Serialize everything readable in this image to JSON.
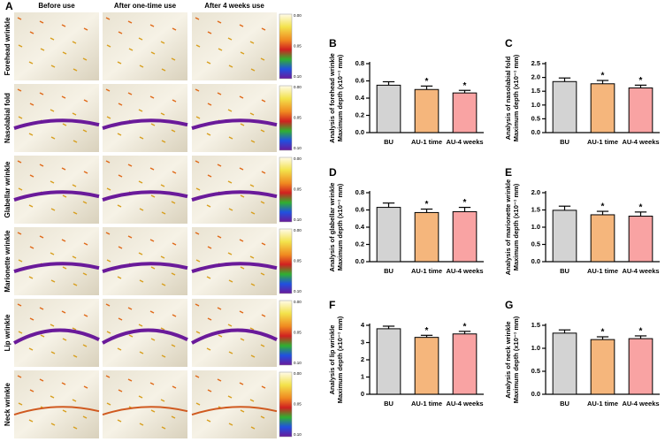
{
  "panel_a": {
    "label": "A",
    "columns": [
      "Before use",
      "After one-time use",
      "After 4 weeks use"
    ],
    "rows": [
      "Forehead wrinkle",
      "Nasolabial  fold",
      "Glabellar wrinkle",
      "Marionette wrinkle",
      "Lip wrinkle",
      "Neck wrinkle"
    ],
    "colorbar_labels": [
      "0.00",
      "0.05",
      "0.10"
    ]
  },
  "chart_data": [
    {
      "type": "bar",
      "label": "B",
      "ylabel": [
        "Analysis of forehead wrinkle",
        "Maximum depth (x10⁻¹ mm)"
      ],
      "categories": [
        "BU",
        "AU-1 time",
        "AU-4 weeks"
      ],
      "colors": [
        "#d3d3d3",
        "#f5b67c",
        "#f9a3a3"
      ],
      "values": [
        0.55,
        0.5,
        0.46
      ],
      "errors": [
        0.04,
        0.04,
        0.03
      ],
      "annotations": [
        null,
        "*",
        "*"
      ],
      "ylim": [
        0,
        0.8
      ],
      "yticks": [
        {
          "value": 0,
          "label": "0.0"
        },
        0.2,
        0.4,
        0.6,
        0.8
      ]
    },
    {
      "type": "bar",
      "label": "C",
      "ylabel": [
        "Analysis of nasolabial fold",
        "Maximum depth (x10⁻¹ mm)"
      ],
      "categories": [
        "BU",
        "AU-1 time",
        "AU-4 weeks"
      ],
      "colors": [
        "#d3d3d3",
        "#f5b67c",
        "#f9a3a3"
      ],
      "values": [
        1.85,
        1.77,
        1.62
      ],
      "errors": [
        0.13,
        0.12,
        0.1
      ],
      "annotations": [
        null,
        "*",
        "*"
      ],
      "ylim": [
        0,
        2.5
      ],
      "yticks": [
        {
          "value": 0,
          "label": "0.0"
        },
        0.5,
        {
          "value": 1,
          "label": "1.0"
        },
        1.5,
        {
          "value": 2,
          "label": "2.0"
        },
        2.5
      ]
    },
    {
      "type": "bar",
      "label": "D",
      "ylabel": [
        "Analysis of glabellar wrinkle",
        "Maximum depth (x10⁻¹ mm)"
      ],
      "categories": [
        "BU",
        "AU-1 time",
        "AU-4 weeks"
      ],
      "colors": [
        "#d3d3d3",
        "#f5b67c",
        "#f9a3a3"
      ],
      "values": [
        0.63,
        0.57,
        0.58
      ],
      "errors": [
        0.05,
        0.04,
        0.05
      ],
      "annotations": [
        null,
        "*",
        "*"
      ],
      "ylim": [
        0,
        0.8
      ],
      "yticks": [
        {
          "value": 0,
          "label": "0.0"
        },
        0.2,
        0.4,
        0.6,
        0.8
      ]
    },
    {
      "type": "bar",
      "label": "E",
      "ylabel": [
        "Analysis of marionette wrinkle",
        "Maximum depth (x10⁻¹ mm)"
      ],
      "categories": [
        "BU",
        "AU-1 time",
        "AU-4 weeks"
      ],
      "colors": [
        "#d3d3d3",
        "#f5b67c",
        "#f9a3a3"
      ],
      "values": [
        1.49,
        1.36,
        1.32
      ],
      "errors": [
        0.12,
        0.1,
        0.12
      ],
      "annotations": [
        null,
        "*",
        "*"
      ],
      "ylim": [
        0,
        2.0
      ],
      "yticks": [
        {
          "value": 0,
          "label": "0.0"
        },
        0.5,
        {
          "value": 1,
          "label": "1.0"
        },
        1.5,
        {
          "value": 2,
          "label": "2.0"
        }
      ]
    },
    {
      "type": "bar",
      "label": "F",
      "ylabel": [
        "Analysis of lip wrinkle",
        "Maximum depth (x10⁻¹ mm)"
      ],
      "categories": [
        "BU",
        "AU-1 time",
        "AU-4 weeks"
      ],
      "colors": [
        "#d3d3d3",
        "#f5b67c",
        "#f9a3a3"
      ],
      "values": [
        3.8,
        3.3,
        3.5
      ],
      "errors": [
        0.15,
        0.12,
        0.15
      ],
      "annotations": [
        null,
        "*",
        "*"
      ],
      "ylim": [
        0,
        4
      ],
      "yticks": [
        0,
        1,
        2,
        3,
        4
      ]
    },
    {
      "type": "bar",
      "label": "G",
      "ylabel": [
        "Analysis of neck wrinkle",
        "Maximum depth (x10⁻¹ mm)"
      ],
      "categories": [
        "BU",
        "AU-1 time",
        "AU-4 weeks"
      ],
      "colors": [
        "#d3d3d3",
        "#f5b67c",
        "#f9a3a3"
      ],
      "values": [
        1.33,
        1.19,
        1.21
      ],
      "errors": [
        0.07,
        0.06,
        0.06
      ],
      "annotations": [
        null,
        "*",
        "*"
      ],
      "ylim": [
        0,
        1.5
      ],
      "yticks": [
        {
          "value": 0,
          "label": "0.0"
        },
        0.5,
        {
          "value": 1,
          "label": "1.0"
        },
        1.5
      ]
    }
  ]
}
